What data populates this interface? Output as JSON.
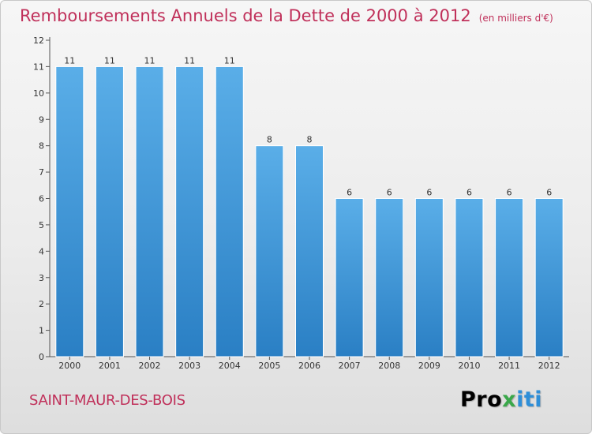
{
  "title": "Remboursements Annuels de la Dette de 2000 à 2012",
  "unit": "(en milliers d'€)",
  "commune": "SAINT-MAUR-DES-BOIS",
  "logo": {
    "p1": "Pro",
    "p2": "x",
    "p3": "iti"
  },
  "colors": {
    "title": "#c0305a",
    "bar_top": "#5aaee8",
    "bar_bottom": "#2a7fc4"
  },
  "chart_data": {
    "type": "bar",
    "categories": [
      "2000",
      "2001",
      "2002",
      "2003",
      "2004",
      "2005",
      "2006",
      "2007",
      "2008",
      "2009",
      "2010",
      "2011",
      "2012"
    ],
    "values": [
      11,
      11,
      11,
      11,
      11,
      8,
      8,
      6,
      6,
      6,
      6,
      6,
      6
    ],
    "title": "Remboursements Annuels de la Dette de 2000 à 2012",
    "ylim": [
      0,
      12
    ],
    "yticks": [
      0,
      1,
      2,
      3,
      4,
      5,
      6,
      7,
      8,
      9,
      10,
      11,
      12
    ],
    "grid": false,
    "data_labels": true
  }
}
